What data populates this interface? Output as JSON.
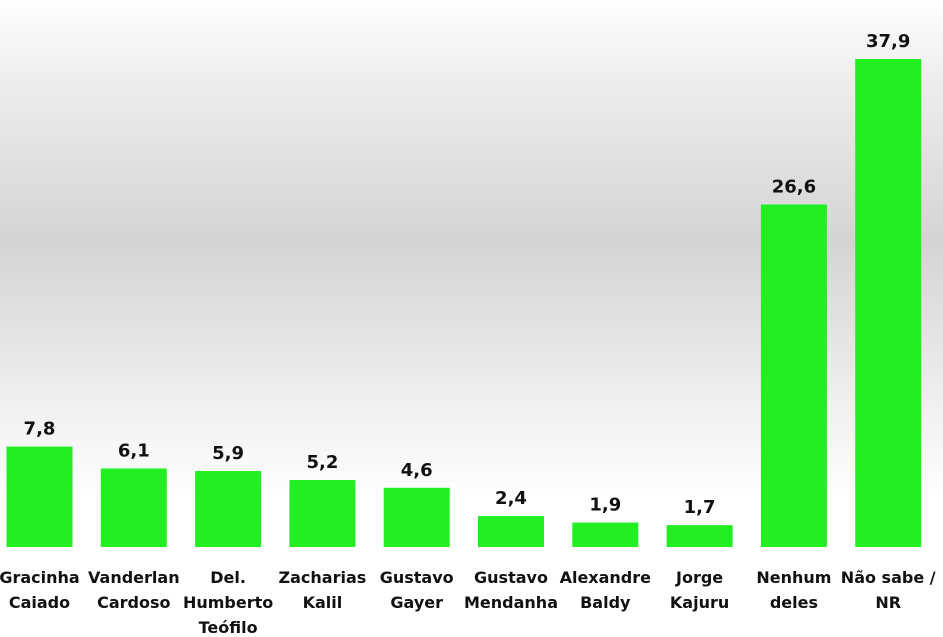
{
  "chart_data": {
    "type": "bar",
    "title": "",
    "xlabel": "",
    "ylabel": "",
    "categories": [
      [
        "Gracinha",
        "Caiado"
      ],
      [
        "Vanderlan",
        "Cardoso"
      ],
      [
        "Del.",
        "Humberto",
        "Teófilo"
      ],
      [
        "Zacharias",
        "Kalil"
      ],
      [
        "Gustavo",
        "Gayer"
      ],
      [
        "Gustavo",
        "Mendanha"
      ],
      [
        "Alexandre",
        "Baldy"
      ],
      [
        "Jorge",
        "Kajuru"
      ],
      [
        "Nenhum",
        "deles"
      ],
      [
        "Não sabe /",
        "NR"
      ]
    ],
    "values": [
      7.8,
      6.1,
      5.9,
      5.2,
      4.6,
      2.4,
      1.9,
      1.7,
      26.6,
      37.9
    ],
    "value_labels": [
      "7,8",
      "6,1",
      "5,9",
      "5,2",
      "4,6",
      "2,4",
      "1,9",
      "1,7",
      "26,6",
      "37,9"
    ],
    "ylim": [
      0,
      38
    ],
    "grid": false,
    "legend": "none",
    "bar_color": "#22ee22"
  }
}
